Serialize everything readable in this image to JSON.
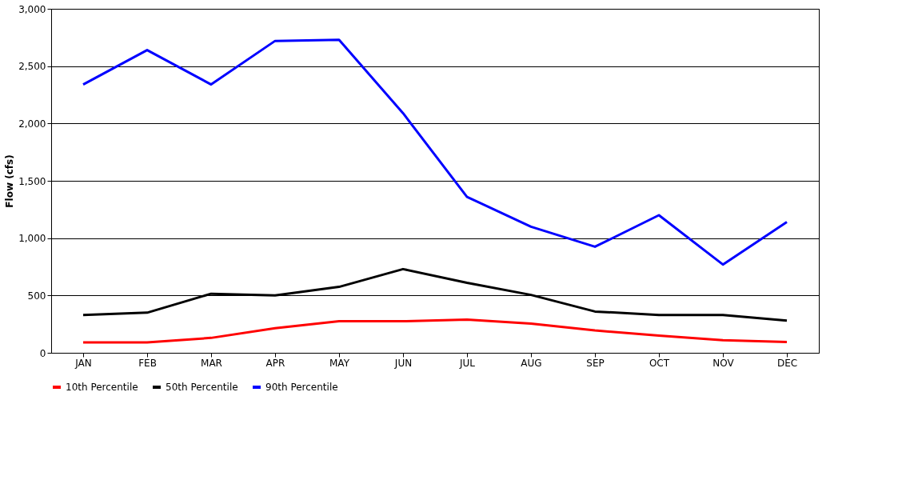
{
  "chart_data": {
    "type": "line",
    "ylabel": "Flow (cfs)",
    "categories": [
      "JAN",
      "FEB",
      "MAR",
      "APR",
      "MAY",
      "JUN",
      "JUL",
      "AUG",
      "SEP",
      "OCT",
      "NOV",
      "DEC"
    ],
    "series": [
      {
        "name": "10th Percentile",
        "color": "#ff0000",
        "values": [
          90,
          90,
          130,
          215,
          275,
          275,
          290,
          255,
          195,
          150,
          110,
          95
        ]
      },
      {
        "name": "50th Percentile",
        "color": "#000000",
        "values": [
          330,
          350,
          515,
          500,
          575,
          730,
          610,
          505,
          360,
          330,
          330,
          280
        ]
      },
      {
        "name": "90th Percentile",
        "color": "#0000ff",
        "values": [
          2340,
          2640,
          2340,
          2720,
          2730,
          2090,
          1360,
          1100,
          925,
          1200,
          770,
          1140
        ]
      }
    ],
    "ylim": [
      0,
      3000
    ],
    "yticks": [
      0,
      500,
      {
        "value": 1000,
        "label": "1,000"
      },
      {
        "value": 1500,
        "label": "1,500"
      },
      {
        "value": 2000,
        "label": "2,000"
      },
      {
        "value": 2500,
        "label": "2,500"
      },
      {
        "value": 3000,
        "label": "3,000"
      }
    ],
    "grid": "y",
    "legend": "bottom",
    "marker": "none",
    "line_style": "solid"
  }
}
